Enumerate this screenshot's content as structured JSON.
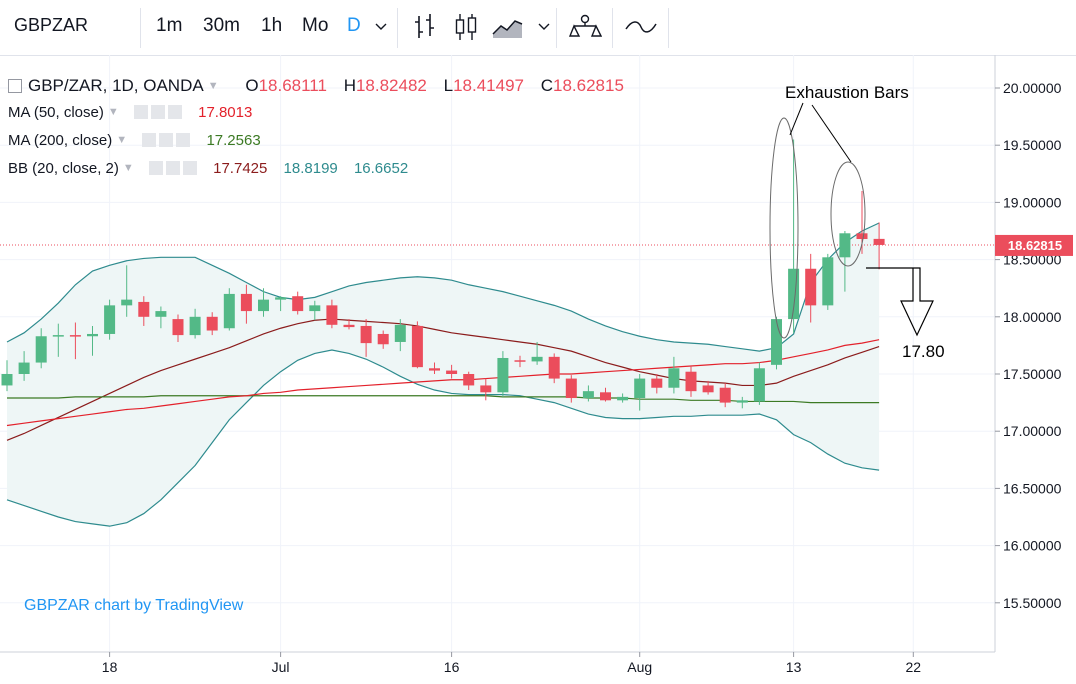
{
  "toolbar": {
    "symbol": "GBPZAR",
    "timeframes": [
      "1m",
      "30m",
      "1h",
      "Mo",
      "D"
    ],
    "active_timeframe": "D",
    "icons": [
      "chevron-down-icon",
      "bar-chart-icon",
      "candles-icon",
      "area-chart-icon",
      "chevron-down-icon",
      "indicators-icon",
      "compare-icon"
    ]
  },
  "legend": {
    "title": "GBP/ZAR, 1D, OANDA",
    "ohlc": [
      {
        "k": "O",
        "v": "18.68111"
      },
      {
        "k": "H",
        "v": "18.82482"
      },
      {
        "k": "L",
        "v": "18.41497"
      },
      {
        "k": "C",
        "v": "18.62815"
      }
    ],
    "ma50": {
      "label": "MA (50, close)",
      "value": "17.8013"
    },
    "ma200": {
      "label": "MA (200, close)",
      "value": "17.2563"
    },
    "bb": {
      "label": "BB (20, close, 2)",
      "basis": "17.7425",
      "upper": "18.8199",
      "lower": "16.6652"
    }
  },
  "annotations": {
    "exhaustion": "Exhaustion Bars",
    "target": "17.80"
  },
  "watermark": "GBPZAR chart by TradingView",
  "colors": {
    "up": "#53b987",
    "down": "#eb4d5c",
    "ma50": "#e3212b",
    "ma200": "#3c7a24",
    "bb_band": "#2e8b8e",
    "bb_basis": "#8b1c1c",
    "bb_fill": "#eef6f6",
    "price_label": "#eb4d5c",
    "accent": "#2196f3",
    "watermark": "#2196f3"
  },
  "chart_data": {
    "type": "candlestick",
    "symbol": "GBP/ZAR",
    "interval": "1D",
    "source": "OANDA",
    "y_ticks": [
      "20.00000",
      "19.50000",
      "19.00000",
      "18.50000",
      "18.00000",
      "17.50000",
      "17.00000",
      "16.50000",
      "16.00000",
      "15.50000"
    ],
    "ylim": [
      15.2,
      20.2
    ],
    "x_ticks": [
      "18",
      "Jul",
      "16",
      "Aug",
      "13",
      "22"
    ],
    "last_price": "18.62815",
    "grid": true,
    "candles": [
      {
        "o": 17.4,
        "h": 17.62,
        "l": 17.35,
        "c": 17.5
      },
      {
        "o": 17.5,
        "h": 17.7,
        "l": 17.44,
        "c": 17.6
      },
      {
        "o": 17.6,
        "h": 17.9,
        "l": 17.55,
        "c": 17.83
      },
      {
        "o": 17.83,
        "h": 17.94,
        "l": 17.65,
        "c": 17.84
      },
      {
        "o": 17.84,
        "h": 17.95,
        "l": 17.63,
        "c": 17.83
      },
      {
        "o": 17.83,
        "h": 17.92,
        "l": 17.66,
        "c": 17.85
      },
      {
        "o": 17.85,
        "h": 18.15,
        "l": 17.8,
        "c": 18.1
      },
      {
        "o": 18.1,
        "h": 18.45,
        "l": 18.0,
        "c": 18.15
      },
      {
        "o": 18.13,
        "h": 18.18,
        "l": 17.92,
        "c": 18.0
      },
      {
        "o": 18.0,
        "h": 18.09,
        "l": 17.9,
        "c": 18.05
      },
      {
        "o": 17.98,
        "h": 18.02,
        "l": 17.78,
        "c": 17.84
      },
      {
        "o": 17.84,
        "h": 18.07,
        "l": 17.81,
        "c": 18.0
      },
      {
        "o": 18.0,
        "h": 18.04,
        "l": 17.84,
        "c": 17.88
      },
      {
        "o": 17.9,
        "h": 18.25,
        "l": 17.88,
        "c": 18.2
      },
      {
        "o": 18.2,
        "h": 18.28,
        "l": 17.94,
        "c": 18.05
      },
      {
        "o": 18.05,
        "h": 18.25,
        "l": 18.0,
        "c": 18.15
      },
      {
        "o": 18.15,
        "h": 18.18,
        "l": 18.05,
        "c": 18.17
      },
      {
        "o": 18.18,
        "h": 18.22,
        "l": 18.02,
        "c": 18.05
      },
      {
        "o": 18.05,
        "h": 18.14,
        "l": 17.97,
        "c": 18.1
      },
      {
        "o": 18.1,
        "h": 18.15,
        "l": 17.9,
        "c": 17.93
      },
      {
        "o": 17.93,
        "h": 17.98,
        "l": 17.89,
        "c": 17.91
      },
      {
        "o": 17.92,
        "h": 17.98,
        "l": 17.65,
        "c": 17.77
      },
      {
        "o": 17.85,
        "h": 17.88,
        "l": 17.72,
        "c": 17.76
      },
      {
        "o": 17.78,
        "h": 17.98,
        "l": 17.7,
        "c": 17.93
      },
      {
        "o": 17.92,
        "h": 17.96,
        "l": 17.55,
        "c": 17.56
      },
      {
        "o": 17.55,
        "h": 17.6,
        "l": 17.5,
        "c": 17.53
      },
      {
        "o": 17.53,
        "h": 17.58,
        "l": 17.46,
        "c": 17.5
      },
      {
        "o": 17.5,
        "h": 17.52,
        "l": 17.36,
        "c": 17.4
      },
      {
        "o": 17.4,
        "h": 17.46,
        "l": 17.27,
        "c": 17.34
      },
      {
        "o": 17.34,
        "h": 17.7,
        "l": 17.3,
        "c": 17.64
      },
      {
        "o": 17.62,
        "h": 17.66,
        "l": 17.56,
        "c": 17.61
      },
      {
        "o": 17.61,
        "h": 17.78,
        "l": 17.58,
        "c": 17.65
      },
      {
        "o": 17.65,
        "h": 17.68,
        "l": 17.42,
        "c": 17.46
      },
      {
        "o": 17.46,
        "h": 17.49,
        "l": 17.25,
        "c": 17.29
      },
      {
        "o": 17.29,
        "h": 17.4,
        "l": 17.26,
        "c": 17.35
      },
      {
        "o": 17.34,
        "h": 17.38,
        "l": 17.26,
        "c": 17.27
      },
      {
        "o": 17.27,
        "h": 17.33,
        "l": 17.25,
        "c": 17.3
      },
      {
        "o": 17.29,
        "h": 17.5,
        "l": 17.18,
        "c": 17.46
      },
      {
        "o": 17.46,
        "h": 17.5,
        "l": 17.33,
        "c": 17.38
      },
      {
        "o": 17.38,
        "h": 17.65,
        "l": 17.33,
        "c": 17.55
      },
      {
        "o": 17.52,
        "h": 17.57,
        "l": 17.3,
        "c": 17.35
      },
      {
        "o": 17.4,
        "h": 17.44,
        "l": 17.32,
        "c": 17.34
      },
      {
        "o": 17.38,
        "h": 17.42,
        "l": 17.21,
        "c": 17.25
      },
      {
        "o": 17.25,
        "h": 17.3,
        "l": 17.2,
        "c": 17.27
      },
      {
        "o": 17.26,
        "h": 17.6,
        "l": 17.23,
        "c": 17.55
      },
      {
        "o": 17.58,
        "h": 18.0,
        "l": 17.54,
        "c": 17.98
      },
      {
        "o": 17.98,
        "h": 19.55,
        "l": 17.86,
        "c": 18.42
      },
      {
        "o": 18.42,
        "h": 18.55,
        "l": 17.95,
        "c": 18.1
      },
      {
        "o": 18.1,
        "h": 18.55,
        "l": 18.06,
        "c": 18.52
      },
      {
        "o": 18.52,
        "h": 18.75,
        "l": 18.22,
        "c": 18.73
      },
      {
        "o": 18.73,
        "h": 19.1,
        "l": 18.55,
        "c": 18.68
      },
      {
        "o": 18.68111,
        "h": 18.82482,
        "l": 18.41497,
        "c": 18.62815
      }
    ],
    "series": [
      {
        "name": "MA (50, close)",
        "values": [
          17.05,
          17.07,
          17.09,
          17.11,
          17.13,
          17.15,
          17.17,
          17.19,
          17.2,
          17.22,
          17.24,
          17.26,
          17.28,
          17.3,
          17.31,
          17.33,
          17.34,
          17.36,
          17.37,
          17.38,
          17.39,
          17.4,
          17.41,
          17.42,
          17.43,
          17.44,
          17.45,
          17.45,
          17.46,
          17.47,
          17.48,
          17.49,
          17.5,
          17.5,
          17.51,
          17.52,
          17.53,
          17.54,
          17.55,
          17.56,
          17.57,
          17.58,
          17.59,
          17.59,
          17.6,
          17.62,
          17.65,
          17.68,
          17.71,
          17.75,
          17.77,
          17.8
        ]
      },
      {
        "name": "MA (200, close)",
        "values": [
          17.29,
          17.29,
          17.29,
          17.29,
          17.3,
          17.3,
          17.3,
          17.3,
          17.3,
          17.31,
          17.31,
          17.31,
          17.31,
          17.31,
          17.31,
          17.31,
          17.31,
          17.31,
          17.31,
          17.31,
          17.31,
          17.31,
          17.31,
          17.31,
          17.31,
          17.31,
          17.31,
          17.31,
          17.31,
          17.3,
          17.3,
          17.3,
          17.3,
          17.3,
          17.29,
          17.29,
          17.29,
          17.28,
          17.28,
          17.28,
          17.27,
          17.27,
          17.27,
          17.26,
          17.26,
          17.26,
          17.26,
          17.25,
          17.25,
          17.25,
          17.25,
          17.25
        ]
      },
      {
        "name": "BB basis",
        "values": [
          16.92,
          16.98,
          17.05,
          17.12,
          17.19,
          17.26,
          17.33,
          17.4,
          17.47,
          17.53,
          17.58,
          17.63,
          17.68,
          17.73,
          17.79,
          17.85,
          17.9,
          17.94,
          17.97,
          17.98,
          17.97,
          17.96,
          17.95,
          17.94,
          17.92,
          17.89,
          17.86,
          17.84,
          17.82,
          17.8,
          17.78,
          17.76,
          17.73,
          17.7,
          17.65,
          17.6,
          17.56,
          17.52,
          17.49,
          17.46,
          17.44,
          17.43,
          17.42,
          17.4,
          17.4,
          17.42,
          17.48,
          17.53,
          17.58,
          17.64,
          17.69,
          17.74
        ]
      },
      {
        "name": "BB upper",
        "values": [
          17.78,
          17.86,
          17.98,
          18.12,
          18.28,
          18.4,
          18.45,
          18.49,
          18.51,
          18.52,
          18.52,
          18.52,
          18.45,
          18.38,
          18.3,
          18.22,
          18.17,
          18.15,
          18.17,
          18.22,
          18.27,
          18.3,
          18.32,
          18.34,
          18.35,
          18.34,
          18.32,
          18.28,
          18.25,
          18.22,
          18.18,
          18.14,
          18.1,
          18.05,
          17.98,
          17.92,
          17.87,
          17.83,
          17.8,
          17.78,
          17.77,
          17.76,
          17.74,
          17.72,
          17.7,
          17.73,
          17.85,
          18.3,
          18.5,
          18.65,
          18.75,
          18.82
        ]
      },
      {
        "name": "BB lower",
        "values": [
          16.4,
          16.35,
          16.3,
          16.25,
          16.21,
          16.19,
          16.17,
          16.2,
          16.28,
          16.4,
          16.55,
          16.7,
          16.9,
          17.1,
          17.25,
          17.4,
          17.52,
          17.62,
          17.68,
          17.71,
          17.68,
          17.63,
          17.56,
          17.48,
          17.41,
          17.36,
          17.33,
          17.32,
          17.32,
          17.32,
          17.31,
          17.28,
          17.25,
          17.2,
          17.15,
          17.12,
          17.11,
          17.11,
          17.12,
          17.13,
          17.13,
          17.14,
          17.14,
          17.14,
          17.15,
          17.1,
          16.97,
          16.9,
          16.8,
          16.72,
          16.68,
          16.66
        ]
      }
    ]
  }
}
